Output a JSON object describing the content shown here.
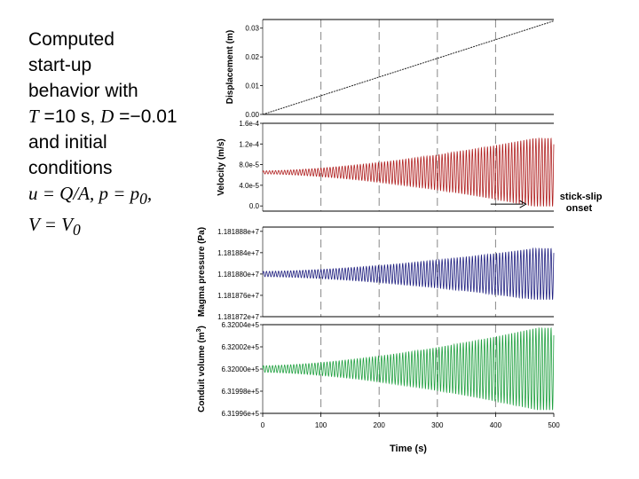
{
  "caption": {
    "line1": "Computed",
    "line2": "start-up",
    "line3": "behavior with",
    "line4_T": "T",
    "line4_a": " =10 s, ",
    "line4_D": "D",
    "line4_b": " =−0.01",
    "line5": "and initial",
    "line6": "conditions",
    "line7_u": "u",
    "line7_a": " = ",
    "line7_QA": "Q/A",
    "line7_b": ", ",
    "line7_p": "p",
    "line7_c": " = ",
    "line7_p0": "p",
    "line7_sub0": "0",
    "line7_d": ",",
    "line8_V": "V",
    "line8_a": " = ",
    "line8_V0": "V",
    "line8_sub0": "0"
  },
  "chart_data": {
    "type": "line",
    "x_axis": {
      "label": "Time (s)",
      "range": [
        0,
        500
      ],
      "ticks": [
        0,
        100,
        200,
        300,
        400,
        500
      ],
      "tick_labels": [
        "0",
        "100",
        "200",
        "300",
        "400",
        "500"
      ],
      "dashed_vertical_gridlines_at": [
        100,
        200,
        300,
        400
      ]
    },
    "panels": [
      {
        "id": "displacement",
        "ylabel": "Displacement (m)",
        "ylim": [
          0,
          0.033
        ],
        "ticks": [
          0,
          0.01,
          0.02,
          0.03
        ],
        "tick_labels": [
          "0.00",
          "0.01",
          "0.02",
          "0.03"
        ],
        "series": [
          {
            "color": "#222222",
            "kind": "linear",
            "start": 0.0,
            "end": 0.0325
          }
        ]
      },
      {
        "id": "velocity",
        "ylabel": "Velocity (m/s)",
        "ylim": [
          -1e-05,
          0.00016
        ],
        "ticks": [
          0,
          4e-05,
          8e-05,
          0.00012,
          0.00016
        ],
        "tick_labels": [
          "0.0",
          "4.0e-5",
          "8.0e-5",
          "1.2e-4",
          "1.6e-4"
        ],
        "series": [
          {
            "color": "#b02020",
            "kind": "oscillation",
            "center": 6.5e-05,
            "amp_start": 3e-06,
            "amp_end": 6.6e-05,
            "growth_end_t": 465,
            "period": 5.2
          }
        ],
        "annotation": {
          "line1": "stick-slip",
          "line2": "onset",
          "arrow_from_t": 300,
          "arrow_to_t": 440,
          "arrow_y": 0.0
        }
      },
      {
        "id": "pressure",
        "ylabel": "Magma pressure (Pa)",
        "ylim": [
          11818720,
          11818888
        ],
        "ticks": [
          11818720,
          11818760,
          11818800,
          11818840,
          11818880
        ],
        "tick_labels": [
          "1.181872e+7",
          "1.181876e+7",
          "1.181880e+7",
          "1.181884e+7",
          "1.181888e+7"
        ],
        "series": [
          {
            "color": "#202080",
            "kind": "oscillation",
            "center": 11818800,
            "amp_start": 5,
            "amp_end": 48,
            "growth_end_t": 465,
            "period": 5.2
          }
        ]
      },
      {
        "id": "volume",
        "ylabel_main": "Conduit volume (m",
        "ylabel_sup": "3",
        "ylabel_end": ")",
        "ylim": [
          631996,
          632004
        ],
        "ticks": [
          631996,
          631998,
          632000,
          632002,
          632004
        ],
        "tick_labels": [
          "6.31996e+5",
          "6.31998e+5",
          "6.32000e+5",
          "6.32002e+5",
          "6.32004e+5"
        ],
        "series": [
          {
            "color": "#20a040",
            "kind": "oscillation",
            "center": 632000,
            "amp_start": 0.3,
            "amp_end": 3.7,
            "growth_end_t": 470,
            "period": 5.2
          }
        ]
      }
    ]
  }
}
